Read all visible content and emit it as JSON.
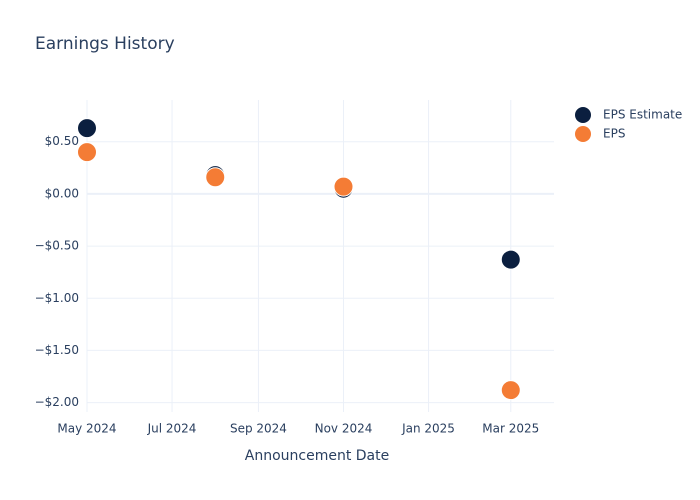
{
  "chart_data": {
    "type": "scatter",
    "title": "Earnings History",
    "x_label": "Announcement Date",
    "x": [
      "2024-05",
      "2024-08",
      "2024-11",
      "2025-03"
    ],
    "series": [
      {
        "name": "EPS Estimate",
        "color": "#0b1f3f",
        "values": [
          0.63,
          0.18,
          0.05,
          -0.63
        ]
      },
      {
        "name": "EPS",
        "color": "#f47c35",
        "values": [
          0.4,
          0.16,
          0.07,
          -1.88
        ]
      }
    ],
    "xlim": [
      "2024-05",
      "2025-04"
    ],
    "xticks": [
      {
        "value": "2024-05",
        "label": "May 2024"
      },
      {
        "value": "2024-07",
        "label": "Jul 2024"
      },
      {
        "value": "2024-09",
        "label": "Sep 2024"
      },
      {
        "value": "2024-11",
        "label": "Nov 2024"
      },
      {
        "value": "2025-01",
        "label": "Jan 2025"
      },
      {
        "value": "2025-03",
        "label": "Mar 2025"
      }
    ],
    "ylim": [
      -2.09,
      0.9
    ],
    "yticks": [
      {
        "value": 0.5,
        "label": "$0.50"
      },
      {
        "value": 0,
        "label": "$0.00"
      },
      {
        "value": -0.5,
        "label": "−$0.50"
      },
      {
        "value": -1,
        "label": "−$1.00"
      },
      {
        "value": -1.5,
        "label": "−$1.50"
      },
      {
        "value": -2,
        "label": "−$2.00"
      }
    ],
    "grid": true,
    "legend": "top-right"
  }
}
